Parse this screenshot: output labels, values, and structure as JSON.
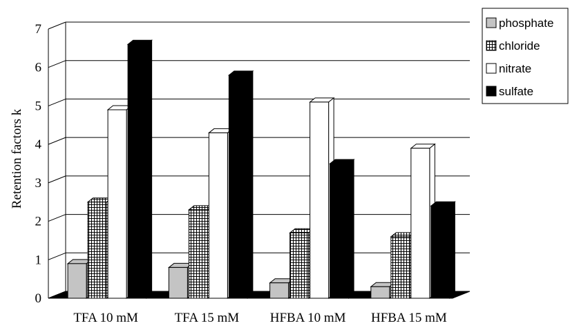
{
  "chart_data": {
    "type": "bar",
    "title": "",
    "xlabel": "",
    "ylabel": "Retention factors k",
    "ylim": [
      0,
      7
    ],
    "yticks": [
      0,
      1,
      2,
      3,
      4,
      5,
      6,
      7
    ],
    "grid": true,
    "legend_position": "top-right",
    "categories": [
      "TFA 10 mM",
      "TFA 15 mM",
      "HFBA 10 mM",
      "HFBA 15 mM"
    ],
    "series": [
      {
        "name": "phosphate",
        "values": [
          0.9,
          0.8,
          0.4,
          0.3
        ],
        "color": "#c4c4c4",
        "pattern": "solid"
      },
      {
        "name": "chloride",
        "values": [
          2.5,
          2.3,
          1.7,
          1.6
        ],
        "color": "#ffffff",
        "pattern": "crosshatch"
      },
      {
        "name": "nitrate",
        "values": [
          4.9,
          4.3,
          5.1,
          3.9
        ],
        "color": "#ffffff",
        "pattern": "solid"
      },
      {
        "name": "sulfate",
        "values": [
          6.6,
          5.8,
          3.5,
          2.4
        ],
        "color": "#000000",
        "pattern": "solid"
      }
    ]
  }
}
